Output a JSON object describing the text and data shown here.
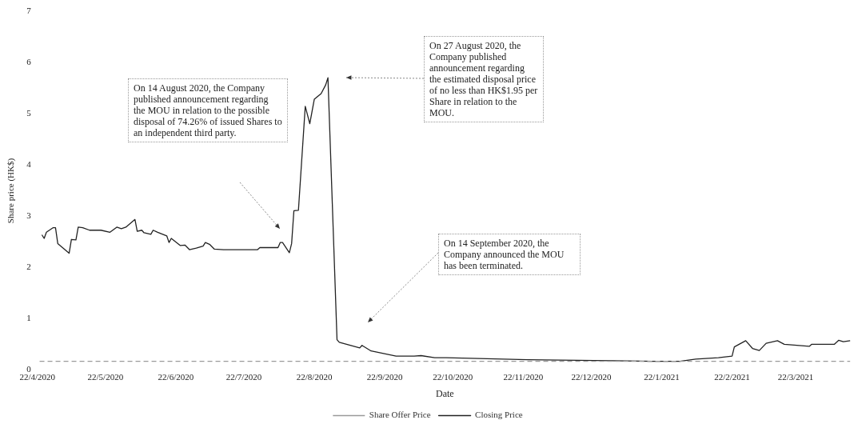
{
  "chart_data": {
    "type": "line",
    "xlabel": "Date",
    "ylabel": "Share price (HK$)",
    "xlim": [
      "2020-04-22",
      "2021-04-16"
    ],
    "xticks": [
      {
        "value": "2020-04-22",
        "label": "22/4/2020"
      },
      {
        "value": "2020-05-22",
        "label": "22/5/2020"
      },
      {
        "value": "2020-06-22",
        "label": "22/6/2020"
      },
      {
        "value": "2020-07-22",
        "label": "22/7/2020"
      },
      {
        "value": "2020-08-22",
        "label": "22/8/2020"
      },
      {
        "value": "2020-09-22",
        "label": "22/9/2020"
      },
      {
        "value": "2020-10-22",
        "label": "22/10/2020"
      },
      {
        "value": "2020-11-22",
        "label": "22/11/2020"
      },
      {
        "value": "2020-12-22",
        "label": "22/12/2020"
      },
      {
        "value": "2021-01-22",
        "label": "22/1/2021"
      },
      {
        "value": "2021-02-22",
        "label": "22/2/2021"
      },
      {
        "value": "2021-03-22",
        "label": "22/3/2021"
      }
    ],
    "ylim": [
      0,
      7
    ],
    "yticks": [
      0,
      1,
      2,
      3,
      4,
      5,
      6,
      7
    ],
    "grid": false,
    "legend": "bottom",
    "marker": "none",
    "series": [
      {
        "name": "Share Offer Price",
        "color": "#9a9a9a",
        "line_style": "dashed",
        "x": [
          "2020-04-23",
          "2021-04-15"
        ],
        "values": [
          0.17,
          0.17
        ]
      },
      {
        "name": "Closing Price",
        "color": "#222222",
        "line_style": "solid",
        "x": [
          "2020-04-24",
          "2020-04-25",
          "2020-04-26",
          "2020-04-29",
          "2020-04-30",
          "2020-05-01",
          "2020-05-06",
          "2020-05-07",
          "2020-05-09",
          "2020-05-10",
          "2020-05-12",
          "2020-05-15",
          "2020-05-20",
          "2020-05-24",
          "2020-05-27",
          "2020-05-29",
          "2020-05-31",
          "2020-06-04",
          "2020-06-05",
          "2020-06-07",
          "2020-06-08",
          "2020-06-11",
          "2020-06-12",
          "2020-06-14",
          "2020-06-18",
          "2020-06-19",
          "2020-06-20",
          "2020-06-24",
          "2020-06-26",
          "2020-06-28",
          "2020-07-01",
          "2020-07-04",
          "2020-07-05",
          "2020-07-07",
          "2020-07-09",
          "2020-07-13",
          "2020-07-28",
          "2020-07-29",
          "2020-08-06",
          "2020-08-07",
          "2020-08-08",
          "2020-08-11",
          "2020-08-12",
          "2020-08-13",
          "2020-08-15",
          "2020-08-18",
          "2020-08-20",
          "2020-08-22",
          "2020-08-25",
          "2020-08-27",
          "2020-08-28",
          "2020-09-01",
          "2020-09-02",
          "2020-09-11",
          "2020-09-12",
          "2020-09-16",
          "2020-09-27",
          "2020-10-05",
          "2020-10-08",
          "2020-10-14",
          "2020-10-19",
          "2020-11-24",
          "2020-12-31",
          "2021-01-18",
          "2021-01-30",
          "2021-02-06",
          "2021-02-16",
          "2021-02-22",
          "2021-02-23",
          "2021-02-28",
          "2021-03-03",
          "2021-03-06",
          "2021-03-09",
          "2021-03-14",
          "2021-03-17",
          "2021-03-28",
          "2021-03-29",
          "2021-04-08",
          "2021-04-10",
          "2021-04-12",
          "2021-04-15"
        ],
        "values": [
          2.64,
          2.57,
          2.69,
          2.78,
          2.78,
          2.47,
          2.28,
          2.55,
          2.54,
          2.79,
          2.78,
          2.73,
          2.73,
          2.69,
          2.79,
          2.76,
          2.79,
          2.94,
          2.71,
          2.73,
          2.68,
          2.65,
          2.73,
          2.69,
          2.62,
          2.49,
          2.57,
          2.43,
          2.44,
          2.35,
          2.38,
          2.42,
          2.49,
          2.45,
          2.36,
          2.35,
          2.35,
          2.39,
          2.39,
          2.49,
          2.49,
          2.29,
          2.47,
          3.11,
          3.12,
          5.15,
          4.81,
          5.29,
          5.4,
          5.57,
          5.71,
          0.59,
          0.54,
          0.43,
          0.48,
          0.37,
          0.27,
          0.27,
          0.28,
          0.24,
          0.24,
          0.2,
          0.18,
          0.17,
          0.17,
          0.21,
          0.24,
          0.27,
          0.45,
          0.57,
          0.42,
          0.38,
          0.52,
          0.57,
          0.5,
          0.46,
          0.5,
          0.5,
          0.58,
          0.55,
          0.57
        ]
      }
    ],
    "annotations": [
      "On 14 August 2020, the Company published announcement regarding the MOU in relation to the possible disposal of 74.26% of issued Shares to an independent third party.",
      "On 27 August 2020, the Company published announcement regarding the estimated disposal price of no less than HK$1.95 per Share in relation to the MOU.",
      "On 14 September 2020, the Company announced the MOU has been terminated."
    ]
  }
}
